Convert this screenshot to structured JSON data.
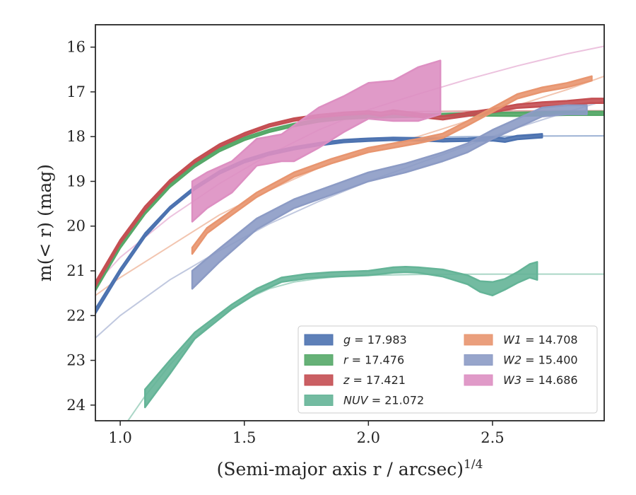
{
  "chart_data": {
    "type": "line",
    "xlabel": "(Semi-major axis r / arcsec)",
    "xlabel_superscript": "1/4",
    "ylabel": "m(< r) (mag)",
    "xlim": [
      0.9,
      2.95
    ],
    "ylim": [
      24.35,
      15.5
    ],
    "y_inverted": true,
    "grid": false,
    "legend_position": "lower-right",
    "legend_columns": 2,
    "x_ticks": [
      1.0,
      1.5,
      2.0,
      2.5
    ],
    "x_tick_labels": [
      "1.0",
      "1.5",
      "2.0",
      "2.5"
    ],
    "y_ticks": [
      16,
      17,
      18,
      19,
      20,
      21,
      22,
      23,
      24
    ],
    "y_tick_labels": [
      "16",
      "17",
      "18",
      "19",
      "20",
      "21",
      "22",
      "23",
      "24"
    ],
    "series": [
      {
        "name": "g = 17.983",
        "name_var": "g",
        "name_val": "17.983",
        "color": "#4c72b0",
        "model_x": [
          0.9,
          0.95,
          1.0,
          1.1,
          1.2,
          1.3,
          1.4,
          1.5,
          1.6,
          1.7,
          1.8,
          1.9,
          2.0,
          2.2,
          2.4,
          2.6,
          2.8,
          2.95
        ],
        "model_y": [
          21.95,
          21.4,
          20.95,
          20.2,
          19.6,
          19.15,
          18.8,
          18.55,
          18.38,
          18.25,
          18.16,
          18.1,
          18.06,
          18.02,
          18.0,
          17.99,
          17.985,
          17.983
        ],
        "profile_x": [
          0.9,
          1.0,
          1.1,
          1.2,
          1.3,
          1.4,
          1.5,
          1.6,
          1.7,
          1.8,
          1.9,
          2.0,
          2.1,
          2.2,
          2.3,
          2.4,
          2.5,
          2.55,
          2.6,
          2.7
        ],
        "profile_y": [
          21.9,
          21.0,
          20.2,
          19.6,
          19.15,
          18.8,
          18.55,
          18.38,
          18.26,
          18.17,
          18.1,
          18.07,
          18.05,
          18.06,
          18.08,
          18.07,
          18.05,
          18.08,
          18.02,
          17.98
        ],
        "profile_err": [
          0.05,
          0.04,
          0.04,
          0.03,
          0.03,
          0.03,
          0.03,
          0.03,
          0.03,
          0.03,
          0.03,
          0.03,
          0.03,
          0.03,
          0.03,
          0.03,
          0.04,
          0.04,
          0.04,
          0.04
        ]
      },
      {
        "name": "r = 17.476",
        "name_var": "r",
        "name_val": "17.476",
        "color": "#55a868",
        "model_x": [
          0.9,
          0.95,
          1.0,
          1.1,
          1.2,
          1.3,
          1.4,
          1.5,
          1.6,
          1.7,
          1.8,
          1.9,
          2.0,
          2.2,
          2.4,
          2.6,
          2.8,
          2.95
        ],
        "model_y": [
          21.4,
          20.9,
          20.45,
          19.7,
          19.1,
          18.65,
          18.3,
          18.05,
          17.87,
          17.74,
          17.64,
          17.58,
          17.54,
          17.5,
          17.49,
          17.48,
          17.478,
          17.476
        ],
        "profile_x": [
          0.9,
          1.0,
          1.1,
          1.2,
          1.3,
          1.4,
          1.5,
          1.6,
          1.7,
          1.8,
          1.9,
          2.0,
          2.2,
          2.4,
          2.6,
          2.8,
          2.95
        ],
        "profile_y": [
          21.4,
          20.45,
          19.7,
          19.1,
          18.65,
          18.3,
          18.05,
          17.87,
          17.74,
          17.64,
          17.58,
          17.55,
          17.53,
          17.5,
          17.5,
          17.48,
          17.48
        ],
        "profile_err": [
          0.04,
          0.04,
          0.03,
          0.03,
          0.03,
          0.03,
          0.03,
          0.03,
          0.03,
          0.03,
          0.03,
          0.03,
          0.03,
          0.03,
          0.04,
          0.04,
          0.04
        ]
      },
      {
        "name": "z = 17.421",
        "name_var": "z",
        "name_val": "17.421",
        "color": "#c44e52",
        "model_x": [
          0.9,
          0.95,
          1.0,
          1.1,
          1.2,
          1.3,
          1.4,
          1.5,
          1.6,
          1.7,
          1.8,
          1.9,
          2.0,
          2.2,
          2.4,
          2.6,
          2.8,
          2.95
        ],
        "model_y": [
          21.3,
          20.8,
          20.35,
          19.6,
          19.0,
          18.55,
          18.2,
          17.95,
          17.75,
          17.62,
          17.54,
          17.49,
          17.46,
          17.44,
          17.43,
          17.425,
          17.422,
          17.421
        ],
        "profile_x": [
          0.9,
          1.0,
          1.1,
          1.2,
          1.3,
          1.4,
          1.5,
          1.6,
          1.7,
          1.8,
          1.9,
          2.0,
          2.05,
          2.1,
          2.2,
          2.3,
          2.4,
          2.5,
          2.6,
          2.7,
          2.8,
          2.9,
          2.95
        ],
        "profile_y": [
          21.3,
          20.35,
          19.6,
          19.0,
          18.55,
          18.2,
          17.95,
          17.75,
          17.62,
          17.54,
          17.49,
          17.46,
          17.5,
          17.45,
          17.52,
          17.58,
          17.5,
          17.42,
          17.32,
          17.28,
          17.25,
          17.2,
          17.2
        ],
        "profile_err": [
          0.05,
          0.04,
          0.04,
          0.03,
          0.03,
          0.03,
          0.03,
          0.03,
          0.03,
          0.03,
          0.03,
          0.03,
          0.04,
          0.04,
          0.04,
          0.04,
          0.04,
          0.04,
          0.04,
          0.05,
          0.05,
          0.05,
          0.05
        ]
      },
      {
        "name": "NUV = 21.072",
        "name_var": "NUV",
        "name_val": "21.072",
        "color": "#64b497",
        "model_x": [
          0.9,
          1.0,
          1.1,
          1.2,
          1.3,
          1.4,
          1.5,
          1.6,
          1.7,
          1.8,
          1.9,
          2.0,
          2.2,
          2.4,
          2.6,
          2.8,
          2.95
        ],
        "model_y": [
          25.5,
          24.6,
          23.8,
          23.1,
          22.5,
          22.0,
          21.65,
          21.4,
          21.25,
          21.17,
          21.12,
          21.1,
          21.08,
          21.075,
          21.073,
          21.072,
          21.072
        ],
        "profile_x": [
          1.1,
          1.2,
          1.3,
          1.45,
          1.55,
          1.65,
          1.75,
          1.85,
          2.0,
          2.1,
          2.15,
          2.2,
          2.3,
          2.4,
          2.45,
          2.5,
          2.55,
          2.6,
          2.65,
          2.68
        ],
        "profile_y": [
          23.85,
          23.15,
          22.45,
          21.8,
          21.45,
          21.2,
          21.12,
          21.08,
          21.05,
          20.98,
          20.97,
          20.98,
          21.05,
          21.2,
          21.35,
          21.4,
          21.3,
          21.15,
          21.0,
          21.0
        ],
        "profile_err": [
          0.2,
          0.15,
          0.07,
          0.05,
          0.05,
          0.05,
          0.05,
          0.05,
          0.05,
          0.06,
          0.06,
          0.06,
          0.08,
          0.1,
          0.12,
          0.15,
          0.12,
          0.12,
          0.15,
          0.2
        ]
      },
      {
        "name": "W1 = 14.708",
        "name_var": "W1",
        "name_val": "14.708",
        "color": "#e8956f",
        "model_x": [
          0.9,
          1.0,
          1.2,
          1.4,
          1.6,
          1.8,
          2.0,
          2.2,
          2.4,
          2.6,
          2.8,
          2.95
        ],
        "model_y": [
          21.55,
          21.15,
          20.45,
          19.75,
          19.2,
          18.7,
          18.3,
          18.0,
          17.65,
          17.3,
          16.95,
          16.65
        ],
        "profile_x": [
          1.29,
          1.35,
          1.45,
          1.55,
          1.7,
          1.85,
          2.0,
          2.1,
          2.2,
          2.3,
          2.4,
          2.5,
          2.6,
          2.7,
          2.8,
          2.9
        ],
        "profile_y": [
          20.55,
          20.1,
          19.7,
          19.3,
          18.85,
          18.55,
          18.3,
          18.2,
          18.1,
          17.98,
          17.7,
          17.4,
          17.1,
          16.95,
          16.85,
          16.7
        ],
        "profile_err": [
          0.07,
          0.06,
          0.05,
          0.05,
          0.05,
          0.05,
          0.05,
          0.05,
          0.05,
          0.05,
          0.05,
          0.05,
          0.05,
          0.05,
          0.05,
          0.05
        ]
      },
      {
        "name": "W2 = 15.400",
        "name_var": "W2",
        "name_val": "15.400",
        "color": "#8c9bc5",
        "model_x": [
          0.9,
          1.0,
          1.2,
          1.4,
          1.6,
          1.8,
          2.0,
          2.2,
          2.4,
          2.6,
          2.8,
          2.95
        ],
        "model_y": [
          22.5,
          22.0,
          21.2,
          20.55,
          19.95,
          19.45,
          19.0,
          18.6,
          18.2,
          17.8,
          17.45,
          17.2
        ],
        "profile_x": [
          1.29,
          1.4,
          1.55,
          1.7,
          1.85,
          2.0,
          2.15,
          2.3,
          2.4,
          2.5,
          2.6,
          2.7,
          2.8,
          2.88
        ],
        "profile_y": [
          21.2,
          20.65,
          19.95,
          19.5,
          19.2,
          18.9,
          18.7,
          18.45,
          18.25,
          17.95,
          17.7,
          17.45,
          17.4,
          17.4
        ],
        "profile_err": [
          0.2,
          0.15,
          0.12,
          0.1,
          0.1,
          0.1,
          0.1,
          0.1,
          0.1,
          0.1,
          0.1,
          0.1,
          0.1,
          0.1
        ]
      },
      {
        "name": "W3 = 14.686",
        "name_var": "W3",
        "name_val": "14.686",
        "color": "#dd8fc2",
        "model_x": [
          0.9,
          1.0,
          1.2,
          1.4,
          1.6,
          1.8,
          2.0,
          2.2,
          2.4,
          2.6,
          2.8,
          2.95
        ],
        "model_y": [
          21.3,
          20.7,
          19.8,
          19.05,
          18.4,
          17.85,
          17.4,
          17.05,
          16.72,
          16.42,
          16.15,
          15.98
        ],
        "profile_x": [
          1.29,
          1.35,
          1.45,
          1.55,
          1.65,
          1.7,
          1.8,
          1.9,
          2.0,
          2.1,
          2.2,
          2.29
        ],
        "profile_y": [
          19.45,
          19.2,
          18.9,
          18.35,
          18.25,
          18.15,
          17.8,
          17.5,
          17.2,
          17.2,
          17.05,
          16.9
        ],
        "profile_err": [
          0.45,
          0.4,
          0.35,
          0.3,
          0.3,
          0.4,
          0.45,
          0.4,
          0.4,
          0.45,
          0.6,
          0.6
        ]
      }
    ]
  }
}
